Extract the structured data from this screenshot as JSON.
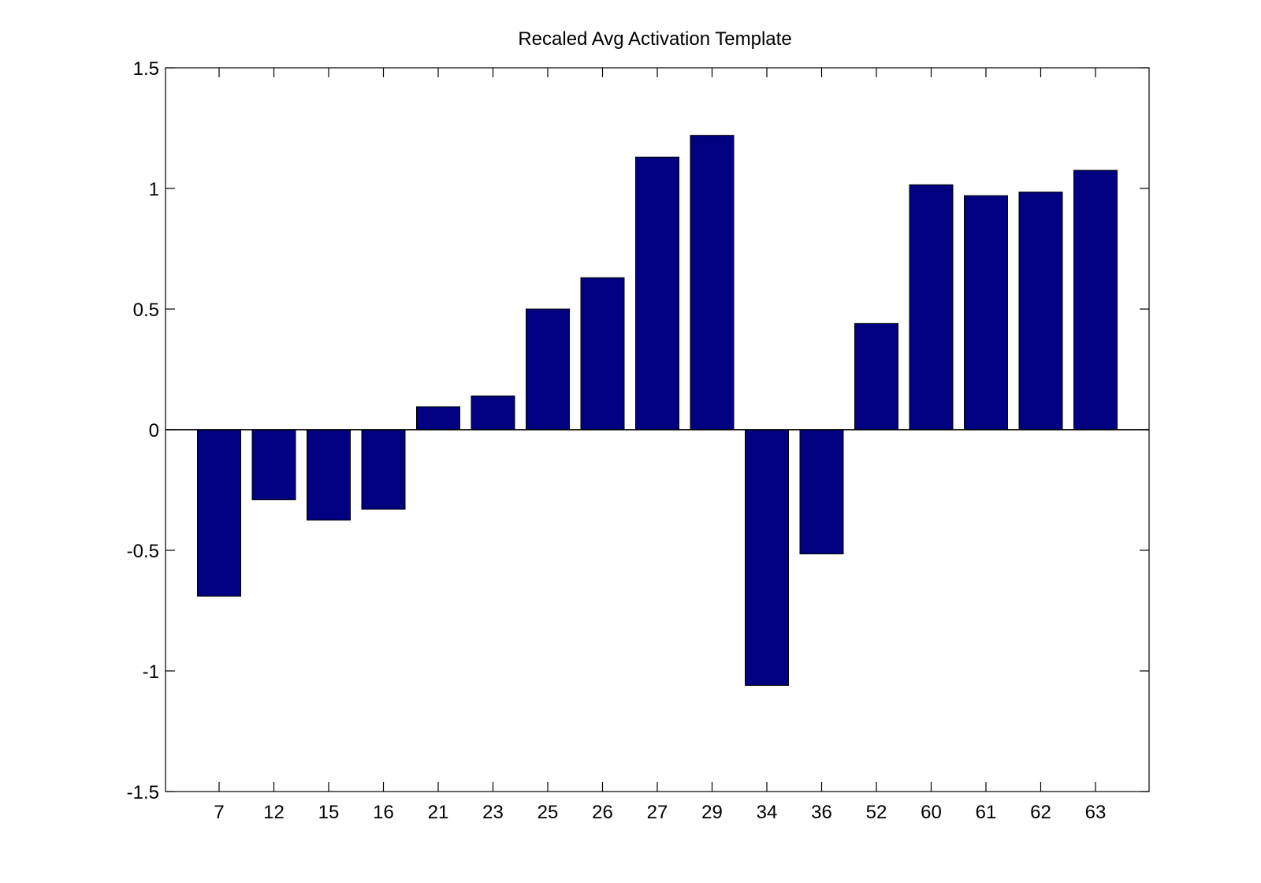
{
  "chart_data": {
    "type": "bar",
    "title": "Recaled Avg Activation Template",
    "xlabel": "",
    "ylabel": "",
    "categories": [
      "7",
      "12",
      "15",
      "16",
      "21",
      "23",
      "25",
      "26",
      "27",
      "29",
      "34",
      "36",
      "52",
      "60",
      "61",
      "62",
      "63"
    ],
    "values": [
      -0.69,
      -0.29,
      -0.375,
      -0.33,
      0.095,
      0.14,
      0.5,
      0.63,
      1.13,
      1.22,
      -1.06,
      -0.515,
      0.44,
      1.015,
      0.97,
      0.985,
      1.075
    ],
    "ylim": [
      -1.5,
      1.5
    ],
    "yticks": [
      -1.5,
      -1,
      -0.5,
      0,
      0.5,
      1,
      1.5
    ],
    "ytick_labels": [
      "-1.5",
      "-1",
      "-0.5",
      "0",
      "0.5",
      "1",
      "1.5"
    ],
    "grid": false,
    "legend": "none",
    "bar_color": "#000080"
  }
}
